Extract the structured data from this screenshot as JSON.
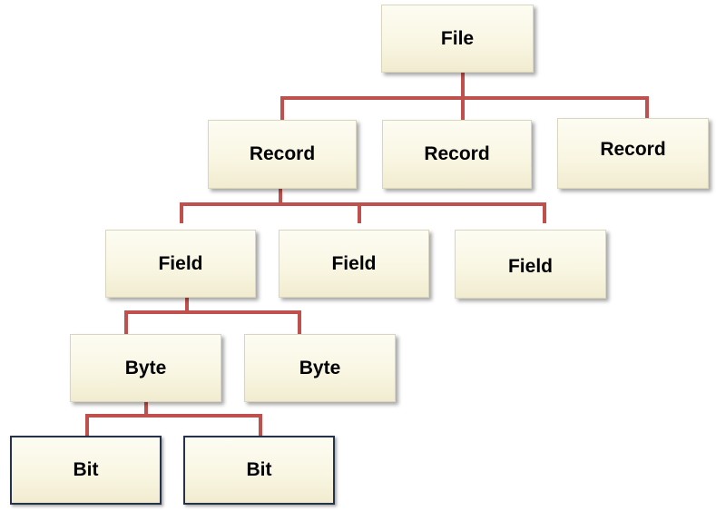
{
  "colors": {
    "connector": "#c0504d",
    "box_fill": "#f9f6e3",
    "bit_border": "#24324a"
  },
  "nodes": {
    "file": "File",
    "record_1": "Record",
    "record_2": "Record",
    "record_3": "Record",
    "field_1": "Field",
    "field_2": "Field",
    "field_3": "Field",
    "byte_1": "Byte",
    "byte_2": "Byte",
    "bit_1": "Bit",
    "bit_2": "Bit"
  }
}
